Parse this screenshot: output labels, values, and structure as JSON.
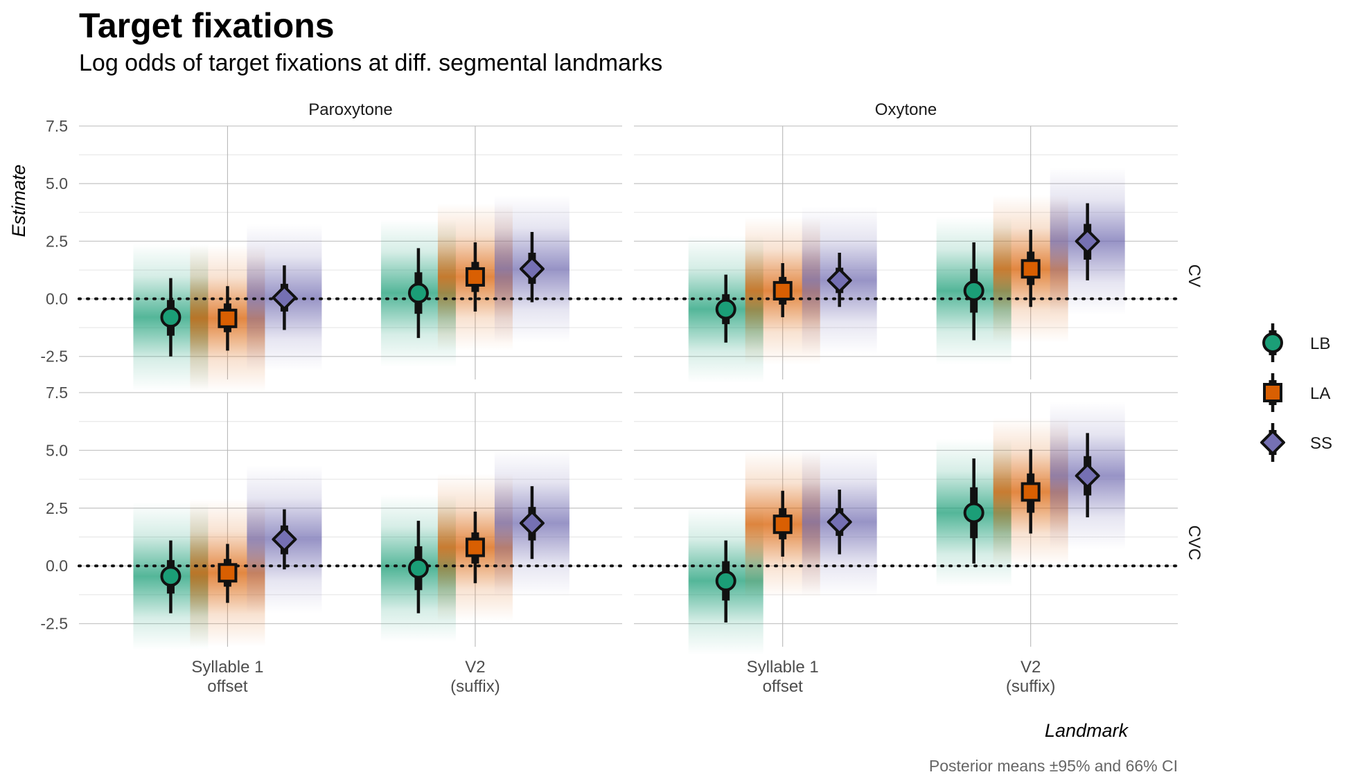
{
  "title": "Target fixations",
  "subtitle": "Log odds of target fixations at diff. segmental landmarks",
  "caption": "Posterior means ±95% and 66% CI",
  "colors": {
    "LB": "#1B9E77",
    "LA": "#D95F02",
    "SS": "#7570B3"
  },
  "chart_data": {
    "type": "scatter",
    "xlabel": "Landmark",
    "ylabel": "Estimate",
    "ylim": [
      -3.5,
      7.5
    ],
    "yticks": [
      "7.5",
      "5.0",
      "2.5",
      "0.0",
      "-2.5"
    ],
    "yticks_values": [
      7.5,
      5.0,
      2.5,
      0.0,
      -2.5
    ],
    "categories": [
      "Syllable 1\noffset",
      "V2\n(suffix)"
    ],
    "column_facets": [
      "Paroxytone",
      "Oxytone"
    ],
    "row_facets": [
      "CV",
      "CVC"
    ],
    "reference_line": 0,
    "grid": true,
    "legend_position": "right",
    "legend": [
      {
        "name": "LB",
        "shape": "circle"
      },
      {
        "name": "LA",
        "shape": "square"
      },
      {
        "name": "SS",
        "shape": "diamond"
      }
    ],
    "panels": [
      {
        "column": "Paroxytone",
        "row": "CV",
        "points": [
          {
            "category": 0,
            "group": "LB",
            "mean": -0.8,
            "ci66": [
              -1.6,
              -0.05
            ],
            "ci95": [
              -2.5,
              0.9
            ]
          },
          {
            "category": 0,
            "group": "LA",
            "mean": -0.85,
            "ci66": [
              -1.45,
              -0.2
            ],
            "ci95": [
              -2.25,
              0.55
            ]
          },
          {
            "category": 0,
            "group": "SS",
            "mean": 0.05,
            "ci66": [
              -0.55,
              0.65
            ],
            "ci95": [
              -1.35,
              1.45
            ]
          },
          {
            "category": 1,
            "group": "LB",
            "mean": 0.25,
            "ci66": [
              -0.65,
              1.15
            ],
            "ci95": [
              -1.7,
              2.2
            ]
          },
          {
            "category": 1,
            "group": "LA",
            "mean": 0.95,
            "ci66": [
              0.3,
              1.6
            ],
            "ci95": [
              -0.55,
              2.45
            ]
          },
          {
            "category": 1,
            "group": "SS",
            "mean": 1.3,
            "ci66": [
              0.65,
              2.0
            ],
            "ci95": [
              -0.15,
              2.9
            ]
          }
        ]
      },
      {
        "column": "Oxytone",
        "row": "CV",
        "points": [
          {
            "category": 0,
            "group": "LB",
            "mean": -0.45,
            "ci66": [
              -1.1,
              0.2
            ],
            "ci95": [
              -1.9,
              1.05
            ]
          },
          {
            "category": 0,
            "group": "LA",
            "mean": 0.35,
            "ci66": [
              -0.25,
              0.95
            ],
            "ci95": [
              -0.8,
              1.55
            ]
          },
          {
            "category": 0,
            "group": "SS",
            "mean": 0.8,
            "ci66": [
              0.25,
              1.35
            ],
            "ci95": [
              -0.35,
              2.0
            ]
          },
          {
            "category": 1,
            "group": "LB",
            "mean": 0.35,
            "ci66": [
              -0.6,
              1.3
            ],
            "ci95": [
              -1.8,
              2.45
            ]
          },
          {
            "category": 1,
            "group": "LA",
            "mean": 1.3,
            "ci66": [
              0.6,
              2.05
            ],
            "ci95": [
              -0.35,
              3.0
            ]
          },
          {
            "category": 1,
            "group": "SS",
            "mean": 2.5,
            "ci66": [
              1.7,
              3.25
            ],
            "ci95": [
              0.8,
              4.15
            ]
          }
        ]
      },
      {
        "column": "Paroxytone",
        "row": "CVC",
        "points": [
          {
            "category": 0,
            "group": "LB",
            "mean": -0.45,
            "ci66": [
              -1.2,
              0.25
            ],
            "ci95": [
              -2.05,
              1.1
            ]
          },
          {
            "category": 0,
            "group": "LA",
            "mean": -0.3,
            "ci66": [
              -0.9,
              0.3
            ],
            "ci95": [
              -1.6,
              0.95
            ]
          },
          {
            "category": 0,
            "group": "SS",
            "mean": 1.15,
            "ci66": [
              0.5,
              1.75
            ],
            "ci95": [
              -0.15,
              2.45
            ]
          },
          {
            "category": 1,
            "group": "LB",
            "mean": -0.1,
            "ci66": [
              -1.05,
              0.85
            ],
            "ci95": [
              -2.05,
              1.95
            ]
          },
          {
            "category": 1,
            "group": "LA",
            "mean": 0.8,
            "ci66": [
              0.1,
              1.45
            ],
            "ci95": [
              -0.75,
              2.35
            ]
          },
          {
            "category": 1,
            "group": "SS",
            "mean": 1.85,
            "ci66": [
              1.1,
              2.55
            ],
            "ci95": [
              0.3,
              3.45
            ]
          }
        ]
      },
      {
        "column": "Oxytone",
        "row": "CVC",
        "points": [
          {
            "category": 0,
            "group": "LB",
            "mean": -0.65,
            "ci66": [
              -1.5,
              0.2
            ],
            "ci95": [
              -2.45,
              1.1
            ]
          },
          {
            "category": 0,
            "group": "LA",
            "mean": 1.8,
            "ci66": [
              1.15,
              2.5
            ],
            "ci95": [
              0.4,
              3.25
            ]
          },
          {
            "category": 0,
            "group": "SS",
            "mean": 1.9,
            "ci66": [
              1.3,
              2.5
            ],
            "ci95": [
              0.5,
              3.3
            ]
          },
          {
            "category": 1,
            "group": "LB",
            "mean": 2.3,
            "ci66": [
              1.2,
              3.4
            ],
            "ci95": [
              0.1,
              4.65
            ]
          },
          {
            "category": 1,
            "group": "LA",
            "mean": 3.2,
            "ci66": [
              2.3,
              4.0
            ],
            "ci95": [
              1.4,
              5.05
            ]
          },
          {
            "category": 1,
            "group": "SS",
            "mean": 3.9,
            "ci66": [
              3.05,
              4.75
            ],
            "ci95": [
              2.1,
              5.75
            ]
          }
        ]
      }
    ]
  }
}
